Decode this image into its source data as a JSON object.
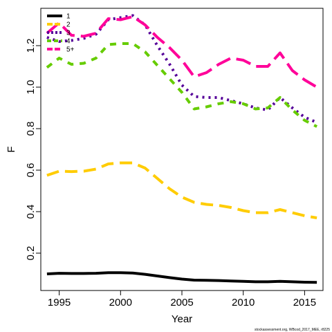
{
  "chart_data": {
    "type": "line",
    "title": "",
    "xlabel": "Year",
    "ylabel": "F",
    "xlim": [
      1993.5,
      2016.5
    ],
    "ylim": [
      0.02,
      1.38
    ],
    "xticks": [
      1995,
      2000,
      2005,
      2010,
      2015
    ],
    "xtick_labels": [
      "1995",
      "2000",
      "2005",
      "2010",
      "2015"
    ],
    "yticks": [
      0.2,
      0.4,
      0.6,
      0.8,
      1.0,
      1.2
    ],
    "ytick_labels": [
      "0.2",
      "0.4",
      "0.6",
      "0.8",
      "1.0",
      "1.2"
    ],
    "grid": false,
    "legend_position": "top-left",
    "source_note": "stockassessment.org, WBcod_2017_MEE, r8225",
    "x": [
      1994,
      1995,
      1996,
      1997,
      1998,
      1999,
      2000,
      2001,
      2002,
      2003,
      2004,
      2005,
      2006,
      2007,
      2008,
      2009,
      2010,
      2011,
      2012,
      2013,
      2014,
      2015,
      2016
    ],
    "series": [
      {
        "name": "1",
        "color": "#000000",
        "dash": "solid",
        "values": [
          0.1,
          0.103,
          0.102,
          0.102,
          0.103,
          0.106,
          0.106,
          0.104,
          0.098,
          0.09,
          0.082,
          0.075,
          0.07,
          0.069,
          0.068,
          0.066,
          0.064,
          0.062,
          0.062,
          0.064,
          0.062,
          0.06,
          0.059
        ]
      },
      {
        "name": "2",
        "color": "#ffcc00",
        "dash": "long",
        "values": [
          0.575,
          0.595,
          0.593,
          0.595,
          0.605,
          0.63,
          0.635,
          0.635,
          0.61,
          0.56,
          0.51,
          0.47,
          0.445,
          0.435,
          0.43,
          0.42,
          0.405,
          0.395,
          0.395,
          0.41,
          0.395,
          0.38,
          0.37
        ]
      },
      {
        "name": "3",
        "color": "#550099",
        "dash": "dotted",
        "values": [
          1.24,
          1.22,
          1.225,
          1.235,
          1.255,
          1.325,
          1.335,
          1.345,
          1.3,
          1.2,
          1.11,
          1.01,
          0.955,
          0.95,
          0.95,
          0.935,
          0.92,
          0.9,
          0.89,
          0.95,
          0.9,
          0.855,
          0.83
        ]
      },
      {
        "name": "4",
        "color": "#66cc00",
        "dash": "dashed",
        "values": [
          1.095,
          1.14,
          1.11,
          1.115,
          1.14,
          1.205,
          1.21,
          1.21,
          1.17,
          1.105,
          1.04,
          0.975,
          0.895,
          0.905,
          0.92,
          0.93,
          0.92,
          0.895,
          0.9,
          0.95,
          0.89,
          0.84,
          0.81
        ]
      },
      {
        "name": "5+",
        "color": "#ff0099",
        "dash": "longdash",
        "values": [
          1.26,
          1.31,
          1.25,
          1.245,
          1.26,
          1.33,
          1.325,
          1.34,
          1.3,
          1.24,
          1.19,
          1.13,
          1.05,
          1.07,
          1.11,
          1.14,
          1.13,
          1.1,
          1.1,
          1.165,
          1.08,
          1.035,
          1.0
        ]
      }
    ]
  }
}
